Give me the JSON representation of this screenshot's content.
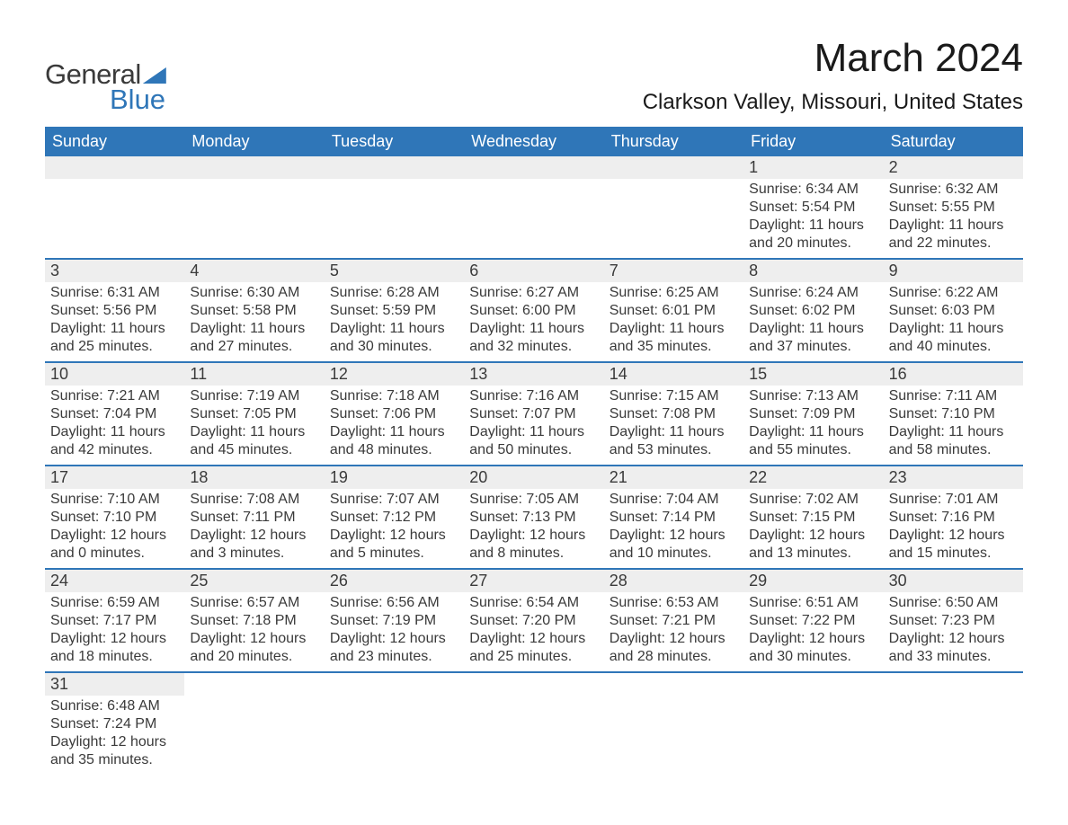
{
  "logo": {
    "text_top": "General",
    "text_bottom": "Blue"
  },
  "title": "March 2024",
  "location": "Clarkson Valley, Missouri, United States",
  "colors": {
    "header_bg": "#2f76b8",
    "row_stripe": "#eeeeee",
    "border": "#2f76b8",
    "text": "#3a3a3a"
  },
  "day_names": [
    "Sunday",
    "Monday",
    "Tuesday",
    "Wednesday",
    "Thursday",
    "Friday",
    "Saturday"
  ],
  "weeks": [
    [
      null,
      null,
      null,
      null,
      null,
      {
        "d": "1",
        "sr": "Sunrise: 6:34 AM",
        "ss": "Sunset: 5:54 PM",
        "dl": "Daylight: 11 hours and 20 minutes."
      },
      {
        "d": "2",
        "sr": "Sunrise: 6:32 AM",
        "ss": "Sunset: 5:55 PM",
        "dl": "Daylight: 11 hours and 22 minutes."
      }
    ],
    [
      {
        "d": "3",
        "sr": "Sunrise: 6:31 AM",
        "ss": "Sunset: 5:56 PM",
        "dl": "Daylight: 11 hours and 25 minutes."
      },
      {
        "d": "4",
        "sr": "Sunrise: 6:30 AM",
        "ss": "Sunset: 5:58 PM",
        "dl": "Daylight: 11 hours and 27 minutes."
      },
      {
        "d": "5",
        "sr": "Sunrise: 6:28 AM",
        "ss": "Sunset: 5:59 PM",
        "dl": "Daylight: 11 hours and 30 minutes."
      },
      {
        "d": "6",
        "sr": "Sunrise: 6:27 AM",
        "ss": "Sunset: 6:00 PM",
        "dl": "Daylight: 11 hours and 32 minutes."
      },
      {
        "d": "7",
        "sr": "Sunrise: 6:25 AM",
        "ss": "Sunset: 6:01 PM",
        "dl": "Daylight: 11 hours and 35 minutes."
      },
      {
        "d": "8",
        "sr": "Sunrise: 6:24 AM",
        "ss": "Sunset: 6:02 PM",
        "dl": "Daylight: 11 hours and 37 minutes."
      },
      {
        "d": "9",
        "sr": "Sunrise: 6:22 AM",
        "ss": "Sunset: 6:03 PM",
        "dl": "Daylight: 11 hours and 40 minutes."
      }
    ],
    [
      {
        "d": "10",
        "sr": "Sunrise: 7:21 AM",
        "ss": "Sunset: 7:04 PM",
        "dl": "Daylight: 11 hours and 42 minutes."
      },
      {
        "d": "11",
        "sr": "Sunrise: 7:19 AM",
        "ss": "Sunset: 7:05 PM",
        "dl": "Daylight: 11 hours and 45 minutes."
      },
      {
        "d": "12",
        "sr": "Sunrise: 7:18 AM",
        "ss": "Sunset: 7:06 PM",
        "dl": "Daylight: 11 hours and 48 minutes."
      },
      {
        "d": "13",
        "sr": "Sunrise: 7:16 AM",
        "ss": "Sunset: 7:07 PM",
        "dl": "Daylight: 11 hours and 50 minutes."
      },
      {
        "d": "14",
        "sr": "Sunrise: 7:15 AM",
        "ss": "Sunset: 7:08 PM",
        "dl": "Daylight: 11 hours and 53 minutes."
      },
      {
        "d": "15",
        "sr": "Sunrise: 7:13 AM",
        "ss": "Sunset: 7:09 PM",
        "dl": "Daylight: 11 hours and 55 minutes."
      },
      {
        "d": "16",
        "sr": "Sunrise: 7:11 AM",
        "ss": "Sunset: 7:10 PM",
        "dl": "Daylight: 11 hours and 58 minutes."
      }
    ],
    [
      {
        "d": "17",
        "sr": "Sunrise: 7:10 AM",
        "ss": "Sunset: 7:10 PM",
        "dl": "Daylight: 12 hours and 0 minutes."
      },
      {
        "d": "18",
        "sr": "Sunrise: 7:08 AM",
        "ss": "Sunset: 7:11 PM",
        "dl": "Daylight: 12 hours and 3 minutes."
      },
      {
        "d": "19",
        "sr": "Sunrise: 7:07 AM",
        "ss": "Sunset: 7:12 PM",
        "dl": "Daylight: 12 hours and 5 minutes."
      },
      {
        "d": "20",
        "sr": "Sunrise: 7:05 AM",
        "ss": "Sunset: 7:13 PM",
        "dl": "Daylight: 12 hours and 8 minutes."
      },
      {
        "d": "21",
        "sr": "Sunrise: 7:04 AM",
        "ss": "Sunset: 7:14 PM",
        "dl": "Daylight: 12 hours and 10 minutes."
      },
      {
        "d": "22",
        "sr": "Sunrise: 7:02 AM",
        "ss": "Sunset: 7:15 PM",
        "dl": "Daylight: 12 hours and 13 minutes."
      },
      {
        "d": "23",
        "sr": "Sunrise: 7:01 AM",
        "ss": "Sunset: 7:16 PM",
        "dl": "Daylight: 12 hours and 15 minutes."
      }
    ],
    [
      {
        "d": "24",
        "sr": "Sunrise: 6:59 AM",
        "ss": "Sunset: 7:17 PM",
        "dl": "Daylight: 12 hours and 18 minutes."
      },
      {
        "d": "25",
        "sr": "Sunrise: 6:57 AM",
        "ss": "Sunset: 7:18 PM",
        "dl": "Daylight: 12 hours and 20 minutes."
      },
      {
        "d": "26",
        "sr": "Sunrise: 6:56 AM",
        "ss": "Sunset: 7:19 PM",
        "dl": "Daylight: 12 hours and 23 minutes."
      },
      {
        "d": "27",
        "sr": "Sunrise: 6:54 AM",
        "ss": "Sunset: 7:20 PM",
        "dl": "Daylight: 12 hours and 25 minutes."
      },
      {
        "d": "28",
        "sr": "Sunrise: 6:53 AM",
        "ss": "Sunset: 7:21 PM",
        "dl": "Daylight: 12 hours and 28 minutes."
      },
      {
        "d": "29",
        "sr": "Sunrise: 6:51 AM",
        "ss": "Sunset: 7:22 PM",
        "dl": "Daylight: 12 hours and 30 minutes."
      },
      {
        "d": "30",
        "sr": "Sunrise: 6:50 AM",
        "ss": "Sunset: 7:23 PM",
        "dl": "Daylight: 12 hours and 33 minutes."
      }
    ],
    [
      {
        "d": "31",
        "sr": "Sunrise: 6:48 AM",
        "ss": "Sunset: 7:24 PM",
        "dl": "Daylight: 12 hours and 35 minutes."
      },
      null,
      null,
      null,
      null,
      null,
      null
    ]
  ]
}
